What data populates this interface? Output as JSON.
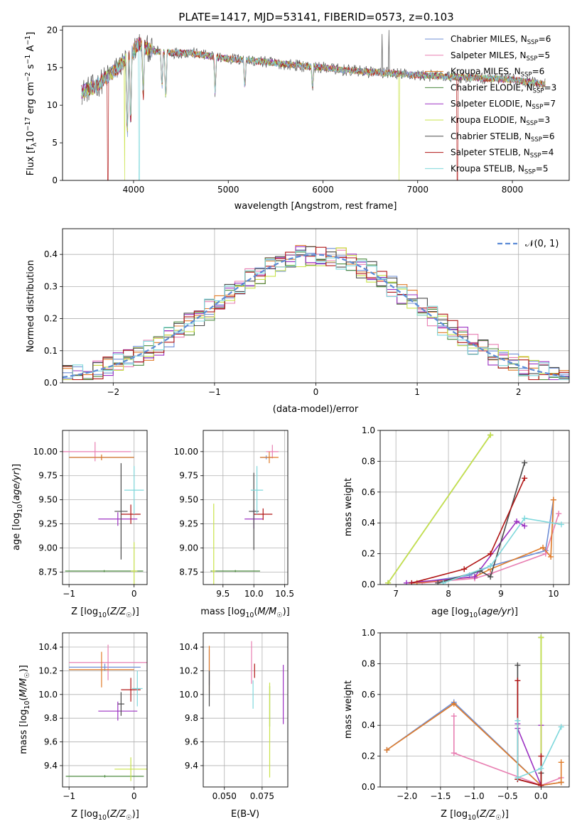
{
  "figure": {
    "title": "PLATE=1417, MJD=53141, FIBERID=0573, z=0.103"
  },
  "colors": {
    "Chabrier MILES": "#6f8fd6",
    "Salpeter MILES": "#e87fb2",
    "Kroupa MILES": "#e07b28",
    "Chabrier ELODIE": "#4b8a3e",
    "Salpeter ELODIE": "#9b30c2",
    "Kroupa ELODIE": "#c9e34a",
    "Chabrier STELIB": "#4a4a4a",
    "Salpeter STELIB": "#b01414",
    "Kroupa STELIB": "#7fd8dc",
    "normal": "#5b8ad6"
  },
  "chart_data": [
    {
      "id": "spectrum",
      "type": "line",
      "xlabel": "wavelength [Angstrom, rest frame]",
      "ylabel": "Flux [f_λ 10^-17 erg cm^-2 s^-1 A^-1]",
      "xlim": [
        3250,
        8600
      ],
      "ylim": [
        0,
        20.5
      ],
      "xticks": [
        4000,
        5000,
        6000,
        7000,
        8000
      ],
      "yticks": [
        0,
        5,
        10,
        15,
        20
      ],
      "legend_position": "top-right",
      "legend": [
        {
          "name": "Chabrier MILES",
          "nssp": "6"
        },
        {
          "name": "Salpeter MILES",
          "nssp": "5"
        },
        {
          "name": "Kroupa MILES",
          "nssp": "6"
        },
        {
          "name": "Chabrier ELODIE",
          "nssp": "3"
        },
        {
          "name": "Salpeter ELODIE",
          "nssp": "7"
        },
        {
          "name": "Kroupa ELODIE",
          "nssp": "3"
        },
        {
          "name": "Chabrier STELIB",
          "nssp": "6"
        },
        {
          "name": "Salpeter STELIB",
          "nssp": "4"
        },
        {
          "name": "Kroupa STELIB",
          "nssp": "5"
        }
      ],
      "continuum": [
        [
          3450,
          11.8
        ],
        [
          3600,
          12.5
        ],
        [
          3800,
          14.6
        ],
        [
          3950,
          16.4
        ],
        [
          4050,
          18.2
        ],
        [
          4200,
          17.2
        ],
        [
          4400,
          17.0
        ],
        [
          4600,
          17.0
        ],
        [
          4800,
          16.5
        ],
        [
          5000,
          16.2
        ],
        [
          5200,
          16.0
        ],
        [
          5500,
          15.6
        ],
        [
          5800,
          15.2
        ],
        [
          6000,
          15.0
        ],
        [
          6200,
          14.7
        ],
        [
          6500,
          14.4
        ],
        [
          6800,
          14.2
        ],
        [
          7000,
          14.0
        ],
        [
          7500,
          13.7
        ],
        [
          8000,
          13.4
        ],
        [
          8350,
          12.8
        ]
      ]
    },
    {
      "id": "residuals",
      "type": "line",
      "xlabel": "(data-model)/error",
      "ylabel": "Normed distribution",
      "xlim": [
        -2.5,
        2.5
      ],
      "ylim": [
        0,
        0.48
      ],
      "xticks": [
        -2,
        -1,
        0,
        1,
        2
      ],
      "yticks": [
        0.0,
        0.1,
        0.2,
        0.3,
        0.4
      ],
      "grid": true,
      "legend_position": "top-right",
      "reference_label": "𝒩(0, 1)",
      "bin_width": 0.1
    },
    {
      "id": "age-vs-Z",
      "type": "scatter",
      "xlabel": "Z [log10(Z/Z☉)]",
      "ylabel": "age [log10(age/yr)]",
      "xlim": [
        -1.1,
        0.2
      ],
      "ylim": [
        8.62,
        10.22
      ],
      "xticks": [
        -1,
        0
      ],
      "yticks": [
        8.75,
        9.0,
        9.25,
        9.5,
        9.75,
        10.0
      ],
      "grid": true,
      "points": [
        {
          "model": "Chabrier MILES",
          "x": -0.5,
          "y": 9.94,
          "xerr": 0.5,
          "yerr": 0.02
        },
        {
          "model": "Salpeter MILES",
          "x": -0.6,
          "y": 10.0,
          "xerr": 0.55,
          "yerr": 0.1
        },
        {
          "model": "Kroupa MILES",
          "x": -0.5,
          "y": 9.94,
          "xerr": 0.5,
          "yerr": 0.03
        },
        {
          "model": "Chabrier ELODIE",
          "x": -0.46,
          "y": 8.76,
          "xerr": 0.6,
          "yerr": 0.01
        },
        {
          "model": "Salpeter ELODIE",
          "x": -0.25,
          "y": 9.3,
          "xerr": 0.3,
          "yerr": 0.07
        },
        {
          "model": "Kroupa ELODIE",
          "x": 0.0,
          "y": 8.76,
          "xerr": 0.05,
          "yerr": 0.3
        },
        {
          "model": "Chabrier STELIB",
          "x": -0.2,
          "y": 9.38,
          "xerr": 0.1,
          "yerr": 0.5
        },
        {
          "model": "Salpeter STELIB",
          "x": -0.05,
          "y": 9.35,
          "xerr": 0.15,
          "yerr": 0.1
        },
        {
          "model": "Kroupa STELIB",
          "x": 0.0,
          "y": 9.6,
          "xerr": 0.15,
          "yerr": 0.25
        }
      ]
    },
    {
      "id": "age-vs-mass",
      "type": "scatter",
      "xlabel": "mass [log10(M/M☉)]",
      "ylabel": "",
      "xlim": [
        9.18,
        10.55
      ],
      "ylim": [
        8.62,
        10.22
      ],
      "xticks": [
        9.5,
        10.0,
        10.5
      ],
      "yticks": [
        8.75,
        9.0,
        9.25,
        9.5,
        9.75,
        10.0
      ],
      "grid": true,
      "points": [
        {
          "model": "Chabrier MILES",
          "x": 10.2,
          "y": 9.94,
          "xerr": 0.1,
          "yerr": 0.02
        },
        {
          "model": "Salpeter MILES",
          "x": 10.3,
          "y": 10.0,
          "xerr": 0.1,
          "yerr": 0.07
        },
        {
          "model": "Kroupa MILES",
          "x": 10.25,
          "y": 9.94,
          "xerr": 0.15,
          "yerr": 0.06
        },
        {
          "model": "Chabrier ELODIE",
          "x": 9.7,
          "y": 8.76,
          "xerr": 0.4,
          "yerr": 0.01
        },
        {
          "model": "Salpeter ELODIE",
          "x": 10.0,
          "y": 9.3,
          "xerr": 0.15,
          "yerr": 0.1
        },
        {
          "model": "Kroupa ELODIE",
          "x": 9.35,
          "y": 8.76,
          "xerr": 0.03,
          "yerr": 0.7
        },
        {
          "model": "Chabrier STELIB",
          "x": 10.0,
          "y": 9.38,
          "xerr": 0.08,
          "yerr": 0.4
        },
        {
          "model": "Salpeter STELIB",
          "x": 10.15,
          "y": 9.35,
          "xerr": 0.15,
          "yerr": 0.06
        },
        {
          "model": "Kroupa STELIB",
          "x": 10.05,
          "y": 9.6,
          "xerr": 0.1,
          "yerr": 0.25
        }
      ]
    },
    {
      "id": "massweight-vs-age",
      "type": "line",
      "xlabel": "age  [log10(age/yr)]",
      "ylabel": "mass weight",
      "xlim": [
        6.7,
        10.3
      ],
      "ylim": [
        0,
        1.0
      ],
      "xticks": [
        7,
        8,
        9,
        10
      ],
      "yticks": [
        0.0,
        0.2,
        0.4,
        0.6,
        0.8,
        1.0
      ],
      "grid": true,
      "series": [
        {
          "model": "Chabrier MILES",
          "x": [
            7.4,
            8.4,
            8.8,
            9.85,
            10.0
          ],
          "y": [
            0.01,
            0.06,
            0.12,
            0.22,
            0.55
          ]
        },
        {
          "model": "Salpeter MILES",
          "x": [
            7.5,
            8.5,
            8.8,
            9.85,
            10.1
          ],
          "y": [
            0.01,
            0.04,
            0.07,
            0.2,
            0.46
          ]
        },
        {
          "model": "Kroupa MILES",
          "x": [
            7.4,
            8.5,
            8.8,
            9.8,
            9.95,
            10.0
          ],
          "y": [
            0.01,
            0.05,
            0.1,
            0.24,
            0.18,
            0.55
          ]
        },
        {
          "model": "Chabrier ELODIE",
          "x": [
            6.85,
            8.8
          ],
          "y": [
            0.01,
            0.97
          ]
        },
        {
          "model": "Salpeter ELODIE",
          "x": [
            7.2,
            8.5,
            9.3,
            9.45
          ],
          "y": [
            0.01,
            0.05,
            0.41,
            0.38
          ]
        },
        {
          "model": "Kroupa ELODIE",
          "x": [
            6.85,
            8.8
          ],
          "y": [
            0.01,
            0.97
          ]
        },
        {
          "model": "Chabrier STELIB",
          "x": [
            7.8,
            8.6,
            8.8,
            9.45
          ],
          "y": [
            0.01,
            0.09,
            0.05,
            0.79
          ]
        },
        {
          "model": "Salpeter STELIB",
          "x": [
            7.3,
            8.3,
            8.8,
            9.45
          ],
          "y": [
            0.01,
            0.1,
            0.2,
            0.69
          ]
        },
        {
          "model": "Kroupa STELIB",
          "x": [
            7.9,
            8.8,
            9.45,
            10.15
          ],
          "y": [
            0.01,
            0.12,
            0.43,
            0.39
          ]
        }
      ]
    },
    {
      "id": "mass-vs-Z",
      "type": "scatter",
      "xlabel": "Z [log10(Z/Z☉)]",
      "ylabel": "mass [log10(M/M☉)]",
      "xlim": [
        -1.1,
        0.2
      ],
      "ylim": [
        9.22,
        10.52
      ],
      "xticks": [
        -1,
        0
      ],
      "yticks": [
        9.4,
        9.6,
        9.8,
        10.0,
        10.2,
        10.4
      ],
      "grid": true,
      "points": [
        {
          "model": "Chabrier MILES",
          "x": -0.45,
          "y": 10.23,
          "xerr": 0.55,
          "yerr": 0.03
        },
        {
          "model": "Salpeter MILES",
          "x": -0.4,
          "y": 10.27,
          "xerr": 0.6,
          "yerr": 0.15
        },
        {
          "model": "Kroupa MILES",
          "x": -0.5,
          "y": 10.21,
          "xerr": 0.5,
          "yerr": 0.15
        },
        {
          "model": "Chabrier ELODIE",
          "x": -0.45,
          "y": 9.31,
          "xerr": 0.6,
          "yerr": 0.01
        },
        {
          "model": "Salpeter ELODIE",
          "x": -0.25,
          "y": 9.86,
          "xerr": 0.3,
          "yerr": 0.08
        },
        {
          "model": "Kroupa ELODIE",
          "x": -0.05,
          "y": 9.37,
          "xerr": 0.25,
          "yerr": 0.1
        },
        {
          "model": "Chabrier STELIB",
          "x": -0.2,
          "y": 9.92,
          "xerr": 0.05,
          "yerr": 0.1
        },
        {
          "model": "Salpeter STELIB",
          "x": -0.05,
          "y": 10.04,
          "xerr": 0.15,
          "yerr": 0.1
        },
        {
          "model": "Kroupa STELIB",
          "x": 0.05,
          "y": 10.05,
          "xerr": 0.08,
          "yerr": 0.15
        }
      ]
    },
    {
      "id": "mass-vs-EBV",
      "type": "scatter",
      "xlabel": "E(B-V)",
      "ylabel": "",
      "xlim": [
        0.036,
        0.092
      ],
      "ylim": [
        9.22,
        10.52
      ],
      "xticks": [
        0.05,
        0.075
      ],
      "xticklabels": [
        "0.050",
        "0.075"
      ],
      "yticks": [
        9.4,
        9.6,
        9.8,
        10.0,
        10.2,
        10.4
      ],
      "grid": true,
      "points": [
        {
          "model": "Chabrier MILES",
          "x": 0.04,
          "y": 10.23,
          "xerr": 0,
          "yerr": 0.15
        },
        {
          "model": "Salpeter MILES",
          "x": 0.068,
          "y": 10.27,
          "xerr": 0,
          "yerr": 0.18
        },
        {
          "model": "Kroupa MILES",
          "x": 0.04,
          "y": 10.21,
          "xerr": 0,
          "yerr": 0.2
        },
        {
          "model": "Chabrier ELODIE",
          "x": 0.08,
          "y": 9.9,
          "xerr": 0,
          "yerr": 0.17
        },
        {
          "model": "Salpeter ELODIE",
          "x": 0.089,
          "y": 10.0,
          "xerr": 0,
          "yerr": 0.25
        },
        {
          "model": "Kroupa ELODIE",
          "x": 0.08,
          "y": 9.7,
          "xerr": 0,
          "yerr": 0.4
        },
        {
          "model": "Chabrier STELIB",
          "x": 0.04,
          "y": 10.05,
          "xerr": 0,
          "yerr": 0.15
        },
        {
          "model": "Salpeter STELIB",
          "x": 0.07,
          "y": 10.2,
          "xerr": 0,
          "yerr": 0.06
        },
        {
          "model": "Kroupa STELIB",
          "x": 0.069,
          "y": 10.0,
          "xerr": 0,
          "yerr": 0.12
        }
      ]
    },
    {
      "id": "massweight-vs-Z",
      "type": "line",
      "xlabel": "Z [log10(Z/Z☉)]",
      "ylabel": "mass weight",
      "xlim": [
        -2.4,
        0.42
      ],
      "ylim": [
        0,
        1.0
      ],
      "xticks": [
        -2.0,
        -1.5,
        -1.0,
        -0.5,
        0.0
      ],
      "yticks": [
        0.0,
        0.2,
        0.4,
        0.6,
        0.8,
        1.0
      ],
      "grid": true,
      "series": [
        {
          "model": "Chabrier MILES",
          "x": [
            -2.3,
            -1.3,
            0.0,
            0.3
          ],
          "y": [
            0.24,
            0.55,
            0.01,
            0.03
          ]
        },
        {
          "model": "Salpeter MILES",
          "x": [
            -1.3,
            -1.3,
            0.0,
            0.3
          ],
          "y": [
            0.46,
            0.22,
            0.01,
            0.06
          ]
        },
        {
          "model": "Kroupa MILES",
          "x": [
            -2.3,
            -1.3,
            0.0,
            0.3,
            0.3
          ],
          "y": [
            0.24,
            0.54,
            0.01,
            0.03,
            0.16
          ]
        },
        {
          "model": "Chabrier ELODIE",
          "x": [
            0.0,
            0.0
          ],
          "y": [
            0.01,
            0.97
          ]
        },
        {
          "model": "Salpeter ELODIE",
          "x": [
            -0.35,
            -0.35,
            0.0,
            0.0
          ],
          "y": [
            0.41,
            0.38,
            0.01,
            0.4
          ]
        },
        {
          "model": "Kroupa ELODIE",
          "x": [
            0.0,
            0.0
          ],
          "y": [
            0.01,
            0.97
          ]
        },
        {
          "model": "Chabrier STELIB",
          "x": [
            -0.35,
            -0.35,
            0.0,
            0.0
          ],
          "y": [
            0.79,
            0.05,
            0.01,
            0.09
          ]
        },
        {
          "model": "Salpeter STELIB",
          "x": [
            -0.35,
            -0.35,
            0.0,
            0.0
          ],
          "y": [
            0.69,
            0.05,
            0.01,
            0.2
          ]
        },
        {
          "model": "Kroupa STELIB",
          "x": [
            -0.35,
            -0.35,
            0.0,
            0.3
          ],
          "y": [
            0.43,
            0.06,
            0.12,
            0.39
          ]
        }
      ]
    }
  ]
}
